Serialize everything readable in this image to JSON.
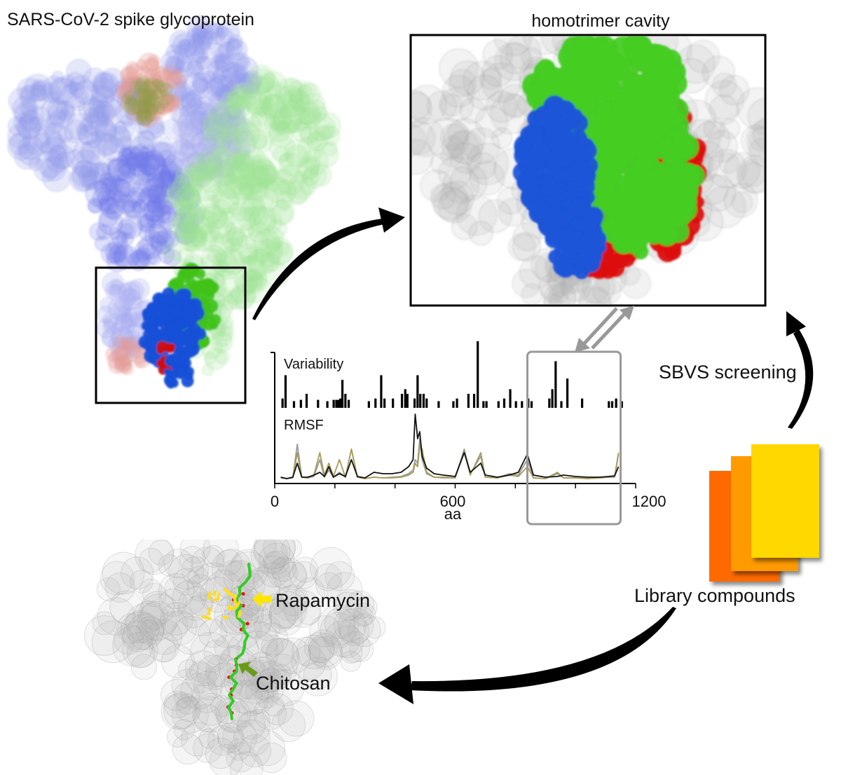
{
  "labels": {
    "spike_title": "SARS-CoV-2 spike glycoprotein",
    "cavity_title": "homotrimer cavity",
    "screening": "SBVS screening",
    "library": "Library compounds",
    "rapamycin": "Rapamycin",
    "chitosan": "Chitosan"
  },
  "colors": {
    "chain_blue": "#1a4fd6",
    "chain_green": "#44cc22",
    "chain_red": "#dd1111",
    "surface_grey": "#bbbbbb",
    "card_red_orange": "#ff6a00",
    "card_orange": "#ff9a00",
    "card_yellow": "#ffd800",
    "rapamycin_arrow": "#ffe600",
    "chitosan_arrow": "#6a9a1a",
    "highlight_box": "#999999",
    "rmsf_black": "#111111",
    "rmsf_grey": "#9a9a9a",
    "rmsf_olive": "#a89a55"
  },
  "icons": [
    "curved-arrow",
    "double-arrow",
    "compound-cards-icon"
  ],
  "chart_data": {
    "type": "bar+line",
    "xlabel": "aa",
    "xlim": [
      0,
      1200
    ],
    "xticks": [
      0,
      200,
      400,
      600,
      800,
      1000,
      1200
    ],
    "xtick_labels": [
      "0",
      "600",
      "1200"
    ],
    "grid": false,
    "highlight_range": [
      840,
      1150
    ],
    "panels": [
      {
        "label": "Variability",
        "type": "bar",
        "x": [
          26,
          36,
          64,
          87,
          106,
          144,
          175,
          196,
          205,
          212,
          218,
          225,
          235,
          246,
          313,
          335,
          354,
          365,
          393,
          423,
          434,
          441,
          465,
          475,
          484,
          495,
          505,
          545,
          594,
          606,
          644,
          663,
          675,
          694,
          704,
          744,
          763,
          783,
          802,
          822,
          843,
          854,
          913,
          923,
          934,
          953,
          973,
          1022,
          1111,
          1122,
          1135,
          1154
        ],
        "values": [
          0.14,
          0.49,
          0.1,
          0.12,
          0.21,
          0.12,
          0.1,
          0.12,
          0.12,
          0.12,
          0.14,
          0.42,
          0.21,
          0.12,
          0.1,
          0.14,
          0.49,
          0.14,
          0.14,
          0.21,
          0.28,
          0.21,
          0.14,
          0.49,
          0.21,
          0.21,
          0.14,
          0.1,
          0.1,
          0.14,
          0.21,
          0.21,
          1.0,
          0.1,
          0.1,
          0.1,
          0.14,
          0.28,
          0.1,
          0.1,
          0.14,
          0.1,
          0.14,
          0.28,
          0.7,
          0.1,
          0.44,
          0.14,
          0.1,
          0.1,
          0.14,
          0.1
        ]
      },
      {
        "label": "RMSF",
        "type": "line",
        "x": [
          20,
          40,
          60,
          75,
          90,
          110,
          130,
          150,
          165,
          180,
          195,
          215,
          235,
          255,
          275,
          300,
          330,
          360,
          390,
          420,
          445,
          460,
          467,
          475,
          482,
          490,
          505,
          530,
          560,
          600,
          630,
          650,
          685,
          700,
          740,
          780,
          810,
          840,
          860,
          900,
          940,
          960,
          1000,
          1040,
          1080,
          1110,
          1130,
          1143
        ],
        "series": [
          {
            "color": "#111111",
            "values": [
              0.05,
              0.03,
              0.05,
              0.25,
              0.05,
              0.05,
              0.08,
              0.12,
              0.06,
              0.2,
              0.05,
              0.1,
              0.06,
              0.3,
              0.06,
              0.04,
              0.12,
              0.1,
              0.1,
              0.12,
              0.2,
              0.3,
              0.95,
              0.6,
              0.7,
              0.35,
              0.18,
              0.1,
              0.08,
              0.06,
              0.4,
              0.12,
              0.25,
              0.08,
              0.05,
              0.08,
              0.12,
              0.38,
              0.08,
              0.05,
              0.06,
              0.08,
              0.06,
              0.05,
              0.05,
              0.06,
              0.07,
              0.2
            ]
          },
          {
            "color": "#9a9a9a",
            "values": [
              0.04,
              0.03,
              0.04,
              0.52,
              0.05,
              0.04,
              0.06,
              0.3,
              0.05,
              0.15,
              0.05,
              0.12,
              0.05,
              0.45,
              0.05,
              0.03,
              0.05,
              0.04,
              0.05,
              0.06,
              0.1,
              0.15,
              0.3,
              0.25,
              0.6,
              0.3,
              0.1,
              0.05,
              0.04,
              0.04,
              0.45,
              0.1,
              0.35,
              0.05,
              0.04,
              0.1,
              0.08,
              0.3,
              0.04,
              0.03,
              0.1,
              0.04,
              0.04,
              0.03,
              0.04,
              0.05,
              0.05,
              0.38
            ]
          },
          {
            "color": "#a89a55",
            "values": [
              0.04,
              0.03,
              0.05,
              0.4,
              0.05,
              0.04,
              0.08,
              0.4,
              0.08,
              0.25,
              0.06,
              0.3,
              0.05,
              0.45,
              0.05,
              0.03,
              0.05,
              0.04,
              0.04,
              0.05,
              0.08,
              0.12,
              0.25,
              0.2,
              0.5,
              0.45,
              0.12,
              0.05,
              0.05,
              0.04,
              0.42,
              0.08,
              0.4,
              0.05,
              0.04,
              0.08,
              0.06,
              0.2,
              0.04,
              0.03,
              0.12,
              0.04,
              0.04,
              0.03,
              0.04,
              0.05,
              0.06,
              0.4
            ]
          }
        ]
      }
    ]
  }
}
